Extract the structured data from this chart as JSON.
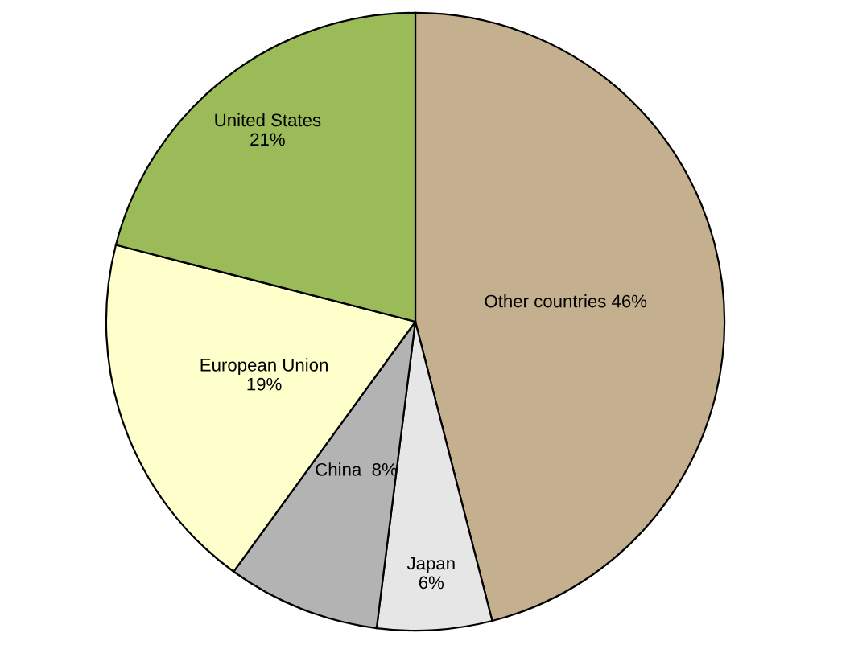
{
  "chart_data": {
    "type": "pie",
    "categories": [
      "Other countries",
      "Japan",
      "China",
      "European Union",
      "United States"
    ],
    "values": [
      46,
      6,
      8,
      19,
      21
    ],
    "value_labels": [
      "46%",
      "6%",
      "8%",
      "19%",
      "21%"
    ],
    "colors": [
      "#c4b08f",
      "#e6e6e6",
      "#b3b3b3",
      "#ffffcc",
      "#9bbb59"
    ],
    "legend": false
  }
}
